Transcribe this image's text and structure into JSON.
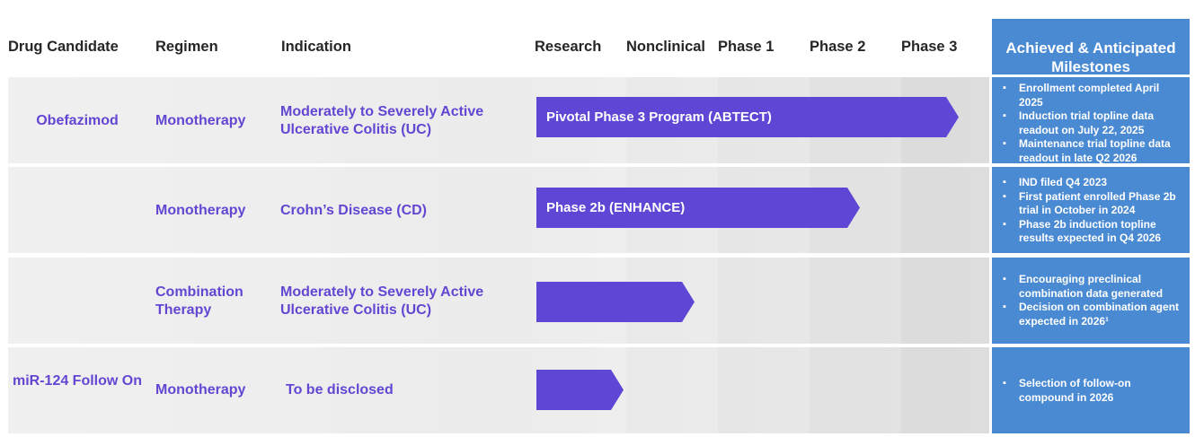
{
  "headers": {
    "drug_candidate": "Drug Candidate",
    "regimen": "Regimen",
    "indication": "Indication",
    "research": "Research",
    "nonclinical": "Nonclinical",
    "phase1": "Phase 1",
    "phase2": "Phase 2",
    "phase3": "Phase 3",
    "milestones": "Achieved & Anticipated Milestones"
  },
  "colors": {
    "purple_text": "#6446d2",
    "arrow": "#5f46d4",
    "milestone_blue": "#4a8ad3"
  },
  "rows": [
    {
      "drug": "Obefazimod",
      "regimen": "Monotherapy",
      "indication": "Moderately to Severely Active Ulcerative Colitis (UC)",
      "program": "Pivotal Phase 3 Program (ABTECT)",
      "stage_reached": "Phase 3",
      "milestones": [
        "Enrollment completed April 2025",
        "Induction trial topline data readout on July 22, 2025",
        "Maintenance trial topline data readout in late Q2 2026"
      ]
    },
    {
      "drug": "",
      "regimen": "Monotherapy",
      "indication": "Crohn’s Disease (CD)",
      "program": "Phase 2b (ENHANCE)",
      "stage_reached": "Phase 2",
      "milestones": [
        "IND filed Q4 2023",
        "First patient enrolled Phase 2b trial in October in 2024",
        "Phase 2b induction topline results expected in Q4 2026"
      ]
    },
    {
      "drug": "",
      "regimen": "Combination Therapy",
      "indication": "Moderately to Severely Active Ulcerative Colitis (UC)",
      "program": "",
      "stage_reached": "Nonclinical",
      "milestones": [
        "Encouraging preclinical combination data generated",
        "Decision on combination agent expected in 2026¹"
      ]
    },
    {
      "drug": "miR-124 Follow On",
      "regimen": "Monotherapy",
      "indication": "To be disclosed",
      "program": "",
      "stage_reached": "Research",
      "milestones": [
        "Selection of follow-on compound in 2026"
      ]
    }
  ]
}
